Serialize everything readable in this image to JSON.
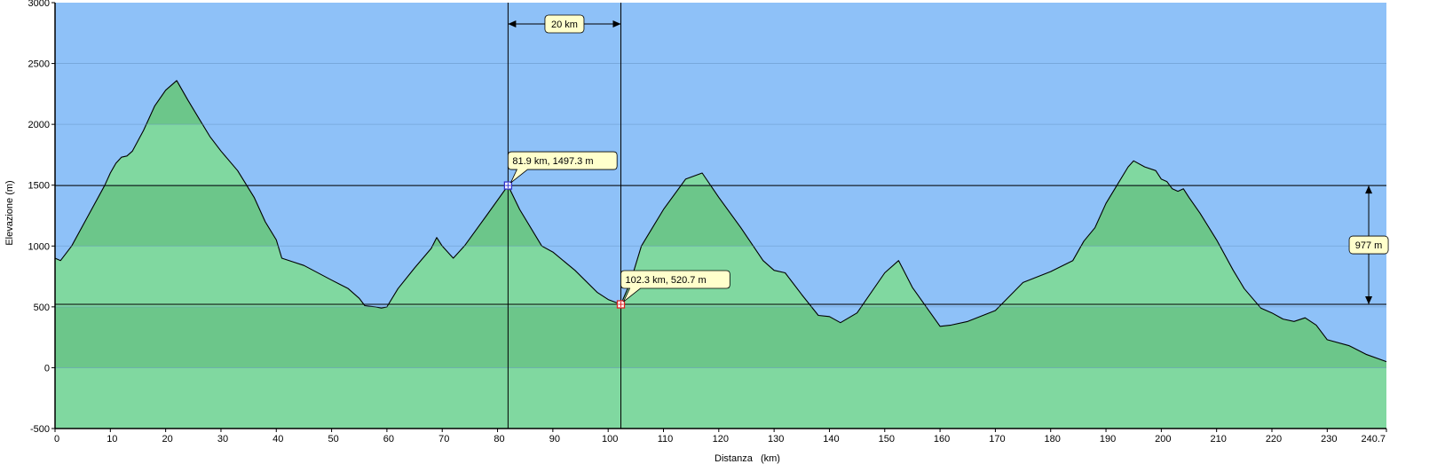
{
  "chart_data": {
    "type": "area",
    "title": "",
    "xlabel": "Distanza   (km)",
    "ylabel": "Elevazione (m)",
    "xlim": [
      0,
      240.7
    ],
    "ylim": [
      -500,
      3000
    ],
    "grid": true,
    "x_ticks": [
      0,
      10,
      20,
      30,
      40,
      50,
      60,
      70,
      80,
      90,
      100,
      110,
      120,
      130,
      140,
      150,
      160,
      170,
      180,
      190,
      200,
      210,
      220,
      230,
      240.7
    ],
    "x_tick_labels": [
      "0",
      "10",
      "20",
      "30",
      "40",
      "50",
      "60",
      "70",
      "80",
      "90",
      "100",
      "110",
      "120",
      "130",
      "140",
      "150",
      "160",
      "170",
      "180",
      "190",
      "200",
      "210",
      "220",
      "230",
      "240.7"
    ],
    "y_ticks": [
      -500,
      0,
      500,
      1000,
      1500,
      2000,
      2500,
      3000
    ],
    "y_tick_labels": [
      "-500",
      "0",
      "500",
      "1000",
      "1500",
      "2000",
      "2500",
      "3000"
    ],
    "colors": {
      "sky": "#8ec1f8",
      "fill_light": "#80d8a0",
      "fill_dark": "#6cc68a",
      "grid": "#5f8fbf",
      "line": "#000000",
      "callout_bg": "#ffffcc",
      "marker_start": "#3333cc",
      "marker_end": "#dd2222"
    },
    "profile": {
      "x": [
        0,
        1,
        3,
        6,
        9,
        10,
        11,
        12,
        13,
        14,
        16,
        18,
        20,
        22,
        24,
        26,
        28,
        30,
        33,
        36,
        38,
        40,
        41,
        43,
        45,
        50,
        53,
        55,
        56,
        58,
        59,
        60,
        62,
        65,
        68,
        69,
        70,
        72,
        74,
        78,
        81.9,
        84,
        88,
        90,
        94,
        98,
        100,
        102.3,
        104,
        106,
        110,
        114,
        117,
        120,
        124,
        128,
        130,
        132,
        135,
        138,
        140,
        142,
        145,
        150,
        152.5,
        155,
        160,
        162,
        165,
        170,
        175,
        180,
        184,
        186,
        188,
        190,
        192,
        194,
        195,
        197,
        199,
        200,
        201,
        202,
        203,
        204,
        205,
        207,
        210,
        213,
        215,
        218,
        220,
        222,
        224,
        226,
        228,
        230,
        234,
        237,
        240.7
      ],
      "y": [
        900,
        880,
        1000,
        1250,
        1500,
        1600,
        1680,
        1730,
        1740,
        1780,
        1950,
        2150,
        2280,
        2360,
        2200,
        2050,
        1900,
        1780,
        1620,
        1400,
        1200,
        1050,
        900,
        870,
        840,
        720,
        650,
        570,
        510,
        500,
        490,
        500,
        650,
        820,
        980,
        1070,
        1000,
        900,
        1000,
        1250,
        1497.3,
        1300,
        1000,
        950,
        800,
        620,
        560,
        520.7,
        700,
        1000,
        1300,
        1550,
        1600,
        1400,
        1150,
        880,
        800,
        780,
        600,
        430,
        420,
        370,
        450,
        780,
        880,
        660,
        340,
        350,
        380,
        470,
        700,
        790,
        880,
        1040,
        1150,
        1350,
        1500,
        1650,
        1700,
        1650,
        1620,
        1550,
        1530,
        1470,
        1450,
        1470,
        1400,
        1270,
        1050,
        800,
        650,
        490,
        450,
        400,
        380,
        410,
        350,
        230,
        180,
        110,
        50
      ]
    },
    "bands": [
      {
        "from": 0,
        "to": 500
      },
      {
        "from": 1000,
        "to": 1500
      },
      {
        "from": 2000,
        "to": 2500
      }
    ],
    "annotations": {
      "start_point": {
        "x": 81.9,
        "y": 1497.3,
        "label": "81.9 km, 1497.3 m"
      },
      "end_point": {
        "x": 102.3,
        "y": 520.7,
        "label": "102.3 km, 520.7 m"
      },
      "distance_label": "20 km",
      "elevation_diff_label": "977 m",
      "elevation_diff_x": 237.5
    }
  }
}
